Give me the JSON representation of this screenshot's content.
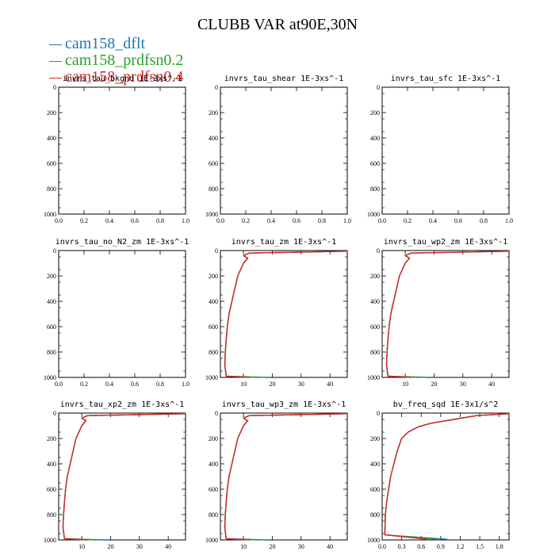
{
  "figure": {
    "title": "CLUBB VAR at90E,30N"
  },
  "legend": [
    {
      "name": "cam158_dflt",
      "color": "#1f77b4"
    },
    {
      "name": "cam158_prdfsn0.2",
      "color": "#2ca02c"
    },
    {
      "name": "cam158_prdfsn0.4",
      "color": "#d62728"
    }
  ],
  "chart_data": [
    {
      "type": "line",
      "title": "invrs_tau_bkgnd   1E-3xs^-1",
      "xlim": [
        0,
        1
      ],
      "ylim": [
        1000,
        0
      ],
      "xticks": [
        "0.0",
        "0.2",
        "0.4",
        "0.6",
        "0.8",
        "1.0"
      ],
      "yticks": [
        "0",
        "200",
        "400",
        "600",
        "800",
        "1000"
      ],
      "series": []
    },
    {
      "type": "line",
      "title": "invrs_tau_shear   1E-3xs^-1",
      "xlim": [
        0,
        1
      ],
      "ylim": [
        1000,
        0
      ],
      "xticks": [
        "0.0",
        "0.2",
        "0.4",
        "0.6",
        "0.8",
        "1.0"
      ],
      "yticks": [
        "0",
        "200",
        "400",
        "600",
        "800",
        "1000"
      ],
      "series": []
    },
    {
      "type": "line",
      "title": "invrs_tau_sfc   1E-3xs^-1",
      "xlim": [
        0,
        1
      ],
      "ylim": [
        1000,
        0
      ],
      "xticks": [
        "0.0",
        "0.2",
        "0.4",
        "0.6",
        "0.8",
        "1.0"
      ],
      "yticks": [
        "0",
        "200",
        "400",
        "600",
        "800",
        "1000"
      ],
      "series": []
    },
    {
      "type": "line",
      "title": "invrs_tau_no_N2_zm   1E-3xs^-1",
      "xlim": [
        0,
        1
      ],
      "ylim": [
        1000,
        0
      ],
      "xticks": [
        "0.0",
        "0.2",
        "0.4",
        "0.6",
        "0.8",
        "1.0"
      ],
      "yticks": [
        "0",
        "200",
        "400",
        "600",
        "800",
        "1000"
      ],
      "series": []
    },
    {
      "type": "line",
      "title": "invrs_tau_zm   1E-3xs^-1",
      "xlim": [
        2,
        46
      ],
      "ylim": [
        1000,
        0
      ],
      "xticks": [
        "10",
        "20",
        "30",
        "40"
      ],
      "yticks": [
        "0",
        "200",
        "400",
        "600",
        "800",
        "1000"
      ],
      "series": [
        {
          "color": "#1f77b4",
          "x": [
            46,
            12,
            10,
            11.5,
            10,
            8,
            7,
            6,
            5,
            4.4,
            4,
            3.7,
            3.5,
            4,
            18
          ],
          "y": [
            5,
            20,
            40,
            60,
            100,
            200,
            300,
            400,
            500,
            600,
            700,
            800,
            900,
            990,
            1000
          ]
        },
        {
          "color": "#2ca02c",
          "x": [
            46,
            12,
            10,
            11.5,
            10,
            8,
            7,
            6,
            5,
            4.4,
            4,
            3.7,
            3.5,
            4,
            15
          ],
          "y": [
            5,
            20,
            40,
            60,
            100,
            200,
            300,
            400,
            500,
            600,
            700,
            800,
            900,
            990,
            1000
          ]
        },
        {
          "color": "#d62728",
          "x": [
            46,
            12,
            10,
            11.5,
            10,
            8,
            7,
            6,
            5,
            4.4,
            4,
            3.7,
            3.5,
            4,
            12
          ],
          "y": [
            5,
            20,
            40,
            60,
            100,
            200,
            300,
            400,
            500,
            600,
            700,
            800,
            900,
            990,
            1000
          ]
        }
      ]
    },
    {
      "type": "line",
      "title": "invrs_tau_wp2_zm   1E-3xs^-1",
      "xlim": [
        2,
        46
      ],
      "ylim": [
        1000,
        0
      ],
      "xticks": [
        "10",
        "20",
        "30",
        "40"
      ],
      "yticks": [
        "0",
        "200",
        "400",
        "600",
        "800",
        "1000"
      ],
      "series": [
        {
          "color": "#1f77b4",
          "x": [
            46,
            12,
            10,
            11.5,
            10,
            8,
            7,
            6,
            5,
            4.4,
            4,
            3.7,
            3.5,
            4,
            18
          ],
          "y": [
            5,
            20,
            40,
            60,
            100,
            200,
            300,
            400,
            500,
            600,
            700,
            800,
            900,
            990,
            1000
          ]
        },
        {
          "color": "#2ca02c",
          "x": [
            46,
            12,
            10,
            11.5,
            10,
            8,
            7,
            6,
            5,
            4.4,
            4,
            3.7,
            3.5,
            4,
            15
          ],
          "y": [
            5,
            20,
            40,
            60,
            100,
            200,
            300,
            400,
            500,
            600,
            700,
            800,
            900,
            990,
            1000
          ]
        },
        {
          "color": "#d62728",
          "x": [
            46,
            12,
            10,
            11.5,
            10,
            8,
            7,
            6,
            5,
            4.4,
            4,
            3.7,
            3.5,
            4,
            12
          ],
          "y": [
            5,
            20,
            40,
            60,
            100,
            200,
            300,
            400,
            500,
            600,
            700,
            800,
            900,
            990,
            1000
          ]
        }
      ]
    },
    {
      "type": "line",
      "title": "invrs_tau_xp2_zm   1E-3xs^-1",
      "xlim": [
        2,
        46
      ],
      "ylim": [
        1000,
        0
      ],
      "xticks": [
        "10",
        "20",
        "30",
        "40"
      ],
      "yticks": [
        "0",
        "200",
        "400",
        "600",
        "800",
        "1000"
      ],
      "series": [
        {
          "color": "#1f77b4",
          "x": [
            46,
            12,
            10,
            11.5,
            10,
            8,
            7,
            6,
            5,
            4.4,
            4,
            3.7,
            3.5,
            4,
            18
          ],
          "y": [
            5,
            20,
            40,
            60,
            100,
            200,
            300,
            400,
            500,
            600,
            700,
            800,
            900,
            990,
            1000
          ]
        },
        {
          "color": "#2ca02c",
          "x": [
            46,
            12,
            10,
            11.5,
            10,
            8,
            7,
            6,
            5,
            4.4,
            4,
            3.7,
            3.5,
            4,
            15
          ],
          "y": [
            5,
            20,
            40,
            60,
            100,
            200,
            300,
            400,
            500,
            600,
            700,
            800,
            900,
            990,
            1000
          ]
        },
        {
          "color": "#d62728",
          "x": [
            46,
            12,
            10,
            11.5,
            10,
            8,
            7,
            6,
            5,
            4.4,
            4,
            3.7,
            3.5,
            4,
            12
          ],
          "y": [
            5,
            20,
            40,
            60,
            100,
            200,
            300,
            400,
            500,
            600,
            700,
            800,
            900,
            990,
            1000
          ]
        }
      ]
    },
    {
      "type": "line",
      "title": "invrs_tau_wp3_zm   1E-3xs^-1",
      "xlim": [
        2,
        46
      ],
      "ylim": [
        1000,
        0
      ],
      "xticks": [
        "10",
        "20",
        "30",
        "40"
      ],
      "yticks": [
        "0",
        "200",
        "400",
        "600",
        "800",
        "1000"
      ],
      "series": [
        {
          "color": "#1f77b4",
          "x": [
            46,
            12,
            10,
            11.5,
            10,
            8,
            7,
            6,
            5,
            4.4,
            4,
            3.7,
            3.5,
            4,
            18
          ],
          "y": [
            5,
            20,
            40,
            60,
            100,
            200,
            300,
            400,
            500,
            600,
            700,
            800,
            900,
            990,
            1000
          ]
        },
        {
          "color": "#2ca02c",
          "x": [
            46,
            12,
            10,
            11.5,
            10,
            8,
            7,
            6,
            5,
            4.4,
            4,
            3.7,
            3.5,
            4,
            15
          ],
          "y": [
            5,
            20,
            40,
            60,
            100,
            200,
            300,
            400,
            500,
            600,
            700,
            800,
            900,
            990,
            1000
          ]
        },
        {
          "color": "#d62728",
          "x": [
            46,
            12,
            10,
            11.5,
            10,
            8,
            7,
            6,
            5,
            4.4,
            4,
            3.7,
            3.5,
            4,
            12
          ],
          "y": [
            5,
            20,
            40,
            60,
            100,
            200,
            300,
            400,
            500,
            600,
            700,
            800,
            900,
            990,
            1000
          ]
        }
      ]
    },
    {
      "type": "line",
      "title": "bv_freq_sqd   1E-3x1/s^2",
      "xlim": [
        0,
        1.95
      ],
      "ylim": [
        1000,
        0
      ],
      "xticks": [
        "0.0",
        "0.3",
        "0.6",
        "0.9",
        "1.2",
        "1.5",
        "1.8"
      ],
      "yticks": [
        "0",
        "200",
        "400",
        "600",
        "800",
        "1000"
      ],
      "series": [
        {
          "color": "#1f77b4",
          "x": [
            1.95,
            1.45,
            1.1,
            0.75,
            0.55,
            0.4,
            0.3,
            0.23,
            0.18,
            0.13,
            0.1,
            0.07,
            0.05,
            0.04,
            1.0
          ],
          "y": [
            5,
            20,
            50,
            80,
            110,
            150,
            200,
            300,
            400,
            500,
            600,
            700,
            800,
            960,
            995
          ]
        },
        {
          "color": "#2ca02c",
          "x": [
            1.95,
            1.45,
            1.1,
            0.75,
            0.55,
            0.4,
            0.3,
            0.23,
            0.18,
            0.13,
            0.1,
            0.07,
            0.05,
            0.04,
            0.85
          ],
          "y": [
            5,
            20,
            50,
            80,
            110,
            150,
            200,
            300,
            400,
            500,
            600,
            700,
            800,
            960,
            995
          ]
        },
        {
          "color": "#d62728",
          "x": [
            1.95,
            1.45,
            1.1,
            0.75,
            0.55,
            0.4,
            0.3,
            0.23,
            0.18,
            0.13,
            0.1,
            0.07,
            0.05,
            0.04,
            0.7
          ],
          "y": [
            5,
            20,
            50,
            80,
            110,
            150,
            200,
            300,
            400,
            500,
            600,
            700,
            800,
            960,
            995
          ]
        }
      ]
    }
  ]
}
